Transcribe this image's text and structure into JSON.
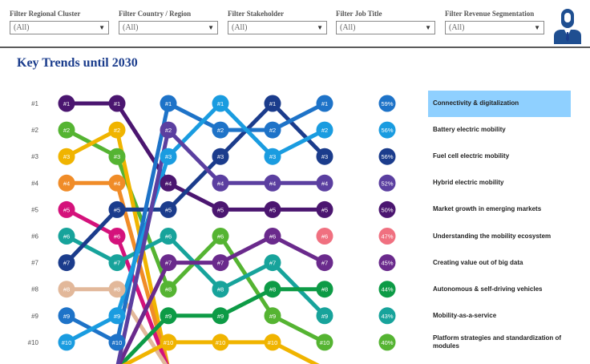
{
  "filters": [
    {
      "label": "Filter Regional Cluster",
      "value": "(All)"
    },
    {
      "label": "Filter Country / Region",
      "value": "(All)"
    },
    {
      "label": "Filter Stakeholder",
      "value": "(All)"
    },
    {
      "label": "Filter Job Title",
      "value": "(All)"
    },
    {
      "label": "Filter Revenue Segmentation",
      "value": "(All)"
    }
  ],
  "avatar": {
    "icon": "user-avatar-icon",
    "color": "#1f4f91"
  },
  "title": "Key Trends until 2030",
  "chart_data": {
    "type": "line",
    "chart_kind": "bump",
    "rank_labels": [
      "#1",
      "#2",
      "#3",
      "#4",
      "#5",
      "#6",
      "#7",
      "#8",
      "#9",
      "#10"
    ],
    "series": [
      {
        "color": "#4b1670",
        "ranks": [
          1,
          1,
          4,
          5,
          5,
          5
        ]
      },
      {
        "color": "#55b432",
        "ranks": [
          2,
          3,
          8,
          6,
          9,
          10
        ]
      },
      {
        "color": "#f0b400",
        "ranks": [
          3,
          2,
          11,
          11,
          11,
          11
        ]
      },
      {
        "color": "#f08c28",
        "ranks": [
          4,
          4,
          11,
          11,
          11,
          11
        ]
      },
      {
        "color": "#d4127b",
        "ranks": [
          5,
          6,
          11,
          11,
          11,
          11
        ]
      },
      {
        "color": "#17a39b",
        "ranks": [
          6,
          7,
          6,
          8,
          7,
          9
        ]
      },
      {
        "color": "#1b3c8c",
        "ranks": [
          7,
          5,
          5,
          3,
          1,
          3
        ]
      },
      {
        "color": "#e2b89a",
        "ranks": [
          8,
          8,
          11,
          11,
          11,
          11
        ]
      },
      {
        "color": "#1e73c8",
        "ranks": [
          9,
          10,
          1,
          2,
          2,
          1
        ]
      },
      {
        "color": "#1a9ce0",
        "ranks": [
          10,
          9,
          3,
          1,
          3,
          2
        ]
      },
      {
        "color": "#0d9b46",
        "ranks": [
          11,
          11,
          9,
          9,
          8,
          8
        ]
      },
      {
        "color": "#f0b400",
        "ranks": [
          11,
          11,
          10,
          10,
          10,
          11
        ]
      },
      {
        "color": "#6a2a8c",
        "ranks": [
          11,
          11,
          7,
          7,
          6,
          7
        ]
      },
      {
        "color": "#5b3fa0",
        "ranks": [
          11,
          11,
          2,
          4,
          4,
          4
        ]
      }
    ],
    "dots": [
      [
        {
          "rank": 1,
          "color": "#4b1670"
        },
        {
          "rank": 2,
          "color": "#55b432"
        },
        {
          "rank": 3,
          "color": "#f0b400"
        },
        {
          "rank": 4,
          "color": "#f08c28"
        },
        {
          "rank": 5,
          "color": "#d4127b"
        },
        {
          "rank": 6,
          "color": "#17a39b"
        },
        {
          "rank": 7,
          "color": "#1b3c8c"
        },
        {
          "rank": 8,
          "color": "#e2b89a"
        },
        {
          "rank": 9,
          "color": "#1e73c8"
        },
        {
          "rank": 10,
          "color": "#1a9ce0"
        }
      ],
      [
        {
          "rank": 1,
          "color": "#4b1670"
        },
        {
          "rank": 2,
          "color": "#f0b400"
        },
        {
          "rank": 3,
          "color": "#55b432"
        },
        {
          "rank": 4,
          "color": "#f08c28"
        },
        {
          "rank": 5,
          "color": "#1b3c8c"
        },
        {
          "rank": 6,
          "color": "#d4127b"
        },
        {
          "rank": 7,
          "color": "#17a39b"
        },
        {
          "rank": 8,
          "color": "#e2b89a"
        },
        {
          "rank": 9,
          "color": "#1a9ce0"
        },
        {
          "rank": 10,
          "color": "#1e73c8"
        }
      ],
      [
        {
          "rank": 1,
          "color": "#1e73c8"
        },
        {
          "rank": 2,
          "color": "#5b3fa0"
        },
        {
          "rank": 3,
          "color": "#1a9ce0"
        },
        {
          "rank": 4,
          "color": "#4b1670"
        },
        {
          "rank": 5,
          "color": "#1b3c8c"
        },
        {
          "rank": 6,
          "color": "#17a39b"
        },
        {
          "rank": 7,
          "color": "#6a2a8c"
        },
        {
          "rank": 8,
          "color": "#55b432"
        },
        {
          "rank": 9,
          "color": "#0d9b46"
        },
        {
          "rank": 10,
          "color": "#f0b400"
        }
      ],
      [
        {
          "rank": 1,
          "color": "#1a9ce0"
        },
        {
          "rank": 2,
          "color": "#1e73c8"
        },
        {
          "rank": 3,
          "color": "#1b3c8c"
        },
        {
          "rank": 4,
          "color": "#5b3fa0"
        },
        {
          "rank": 5,
          "color": "#4b1670"
        },
        {
          "rank": 6,
          "color": "#55b432"
        },
        {
          "rank": 7,
          "color": "#6a2a8c"
        },
        {
          "rank": 8,
          "color": "#17a39b"
        },
        {
          "rank": 9,
          "color": "#0d9b46"
        },
        {
          "rank": 10,
          "color": "#f0b400"
        }
      ],
      [
        {
          "rank": 1,
          "color": "#1b3c8c"
        },
        {
          "rank": 2,
          "color": "#1e73c8"
        },
        {
          "rank": 3,
          "color": "#1a9ce0"
        },
        {
          "rank": 4,
          "color": "#5b3fa0"
        },
        {
          "rank": 5,
          "color": "#4b1670"
        },
        {
          "rank": 6,
          "color": "#6a2a8c"
        },
        {
          "rank": 7,
          "color": "#17a39b"
        },
        {
          "rank": 8,
          "color": "#0d9b46"
        },
        {
          "rank": 9,
          "color": "#55b432"
        },
        {
          "rank": 10,
          "color": "#f0b400"
        }
      ],
      [
        {
          "rank": 1,
          "color": "#1e73c8"
        },
        {
          "rank": 2,
          "color": "#1a9ce0"
        },
        {
          "rank": 3,
          "color": "#1b3c8c"
        },
        {
          "rank": 4,
          "color": "#5b3fa0"
        },
        {
          "rank": 5,
          "color": "#4b1670"
        },
        {
          "rank": 6,
          "color": "#f07080"
        },
        {
          "rank": 7,
          "color": "#6a2a8c"
        },
        {
          "rank": 8,
          "color": "#0d9b46"
        },
        {
          "rank": 9,
          "color": "#17a39b"
        },
        {
          "rank": 10,
          "color": "#55b432"
        }
      ]
    ],
    "percentages": [
      {
        "value": "59%",
        "color": "#1e73c8"
      },
      {
        "value": "56%",
        "color": "#1a9ce0"
      },
      {
        "value": "56%",
        "color": "#1b3c8c"
      },
      {
        "value": "52%",
        "color": "#5b3fa0"
      },
      {
        "value": "50%",
        "color": "#4b1670"
      },
      {
        "value": "47%",
        "color": "#f07080"
      },
      {
        "value": "45%",
        "color": "#6a2a8c"
      },
      {
        "value": "44%",
        "color": "#0d9b46"
      },
      {
        "value": "43%",
        "color": "#17a39b"
      },
      {
        "value": "40%",
        "color": "#55b432"
      }
    ],
    "trends": [
      "Connectivity & digitalization",
      "Battery electric mobility",
      "Fuel cell electric mobility",
      "Hybrid electric mobility",
      "Market growth in emerging markets",
      "Understanding the mobility ecosystem",
      "Creating value out of big data",
      "Autonomous & self-driving vehicles",
      "Mobility-as-a-service",
      "Platform strategies and standardization of modules"
    ],
    "selected_trend_index": 0,
    "selected_color": "#8fd0ff"
  }
}
